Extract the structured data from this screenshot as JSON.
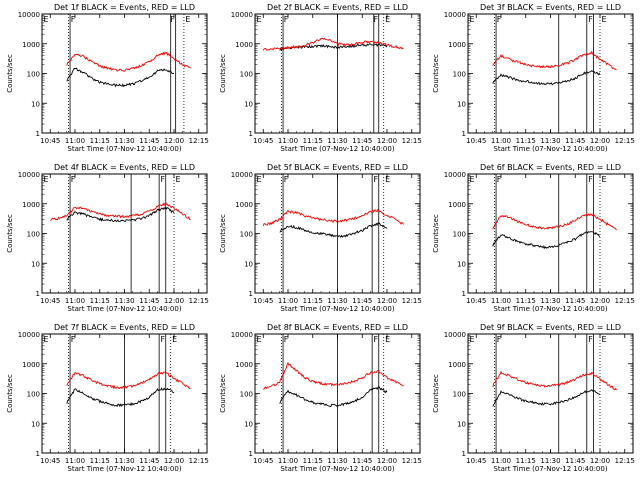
{
  "figure": {
    "start_time_label": "Start Time (07-Nov-12 10:40:00)",
    "ylabel": "Counts/sec",
    "x_ticks": [
      "10:45",
      "11:00",
      "11:15",
      "11:30",
      "11:45",
      "12:00",
      "12:15"
    ],
    "y_ticks": [
      "1",
      "10",
      "100",
      "1000",
      "10000"
    ],
    "colors": {
      "events": "#000000",
      "lld": "#ff0000"
    }
  },
  "chart_data": [
    {
      "type": "line",
      "title": "Det 1f BLACK = Events, RED = LLD",
      "xlabel": "Start Time (07-Nov-12 10:40:00)",
      "ylabel": "Counts/sec",
      "yscale": "log",
      "ylim": [
        1,
        10000
      ],
      "xlim": [
        "10:40",
        "12:20"
      ],
      "x": [
        "10:45",
        "10:50",
        "10:55",
        "11:00",
        "11:05",
        "11:10",
        "11:15",
        "11:20",
        "11:25",
        "11:30",
        "11:35",
        "11:40",
        "11:45",
        "11:50",
        "11:55",
        "12:00",
        "12:05",
        "12:10"
      ],
      "series": [
        {
          "name": "Events",
          "values": [
            null,
            null,
            60,
            150,
            110,
            70,
            50,
            45,
            40,
            40,
            45,
            55,
            75,
            120,
            140,
            100,
            null,
            null
          ]
        },
        {
          "name": "LLD",
          "values": [
            null,
            null,
            200,
            450,
            380,
            250,
            180,
            150,
            130,
            130,
            150,
            180,
            250,
            400,
            500,
            320,
            200,
            150
          ]
        }
      ],
      "vlines_solid": [
        "10:57",
        "11:58",
        "12:01"
      ],
      "vlines_dotted": [
        "12:06"
      ],
      "markers": [
        "E",
        "F",
        "F",
        "E"
      ]
    },
    {
      "type": "line",
      "title": "Det 2f BLACK = Events, RED = LLD",
      "xlabel": "Start Time (07-Nov-12 10:40:00)",
      "ylabel": "Counts/sec",
      "yscale": "log",
      "ylim": [
        1,
        10000
      ],
      "xlim": [
        "10:40",
        "12:20"
      ],
      "x": [
        "10:45",
        "10:50",
        "10:55",
        "11:00",
        "11:05",
        "11:10",
        "11:15",
        "11:20",
        "11:25",
        "11:30",
        "11:35",
        "11:40",
        "11:45",
        "11:50",
        "11:55",
        "12:00",
        "12:05",
        "12:10"
      ],
      "series": [
        {
          "name": "Events",
          "values": [
            null,
            null,
            650,
            700,
            750,
            800,
            800,
            850,
            800,
            750,
            800,
            850,
            900,
            950,
            900,
            850,
            null,
            null
          ]
        },
        {
          "name": "LLD",
          "values": [
            650,
            650,
            700,
            750,
            800,
            900,
            1100,
            1500,
            1300,
            1000,
            900,
            1000,
            1100,
            1200,
            1100,
            900,
            800,
            700
          ]
        }
      ],
      "vlines_solid": [
        "10:57",
        "11:30",
        "11:52",
        "11:55"
      ],
      "vlines_dotted": [
        "11:58"
      ],
      "markers": [
        "E",
        "F",
        "F",
        "E"
      ]
    },
    {
      "type": "line",
      "title": "Det 3f BLACK = Events, RED = LLD",
      "xlabel": "Start Time (07-Nov-12 10:40:00)",
      "ylabel": "Counts/sec",
      "yscale": "log",
      "ylim": [
        1,
        10000
      ],
      "xlim": [
        "10:40",
        "12:20"
      ],
      "x": [
        "10:45",
        "10:50",
        "10:55",
        "11:00",
        "11:05",
        "11:10",
        "11:15",
        "11:20",
        "11:25",
        "11:30",
        "11:35",
        "11:40",
        "11:45",
        "11:50",
        "11:55",
        "12:00",
        "12:05",
        "12:10"
      ],
      "series": [
        {
          "name": "Events",
          "values": [
            null,
            null,
            50,
            90,
            75,
            60,
            55,
            50,
            45,
            45,
            50,
            55,
            70,
            100,
            120,
            90,
            null,
            null
          ]
        },
        {
          "name": "LLD",
          "values": [
            null,
            null,
            200,
            400,
            300,
            250,
            200,
            180,
            170,
            170,
            190,
            220,
            300,
            420,
            500,
            300,
            200,
            130
          ]
        }
      ],
      "vlines_solid": [
        "10:57",
        "11:35",
        "11:52",
        "11:56"
      ],
      "vlines_dotted": [
        "12:00"
      ],
      "markers": [
        "E",
        "F",
        "F",
        "E"
      ]
    },
    {
      "type": "line",
      "title": "Det 4f BLACK = Events, RED = LLD",
      "xlabel": "Start Time (07-Nov-12 10:40:00)",
      "ylabel": "Counts/sec",
      "yscale": "log",
      "ylim": [
        1,
        10000
      ],
      "xlim": [
        "10:40",
        "12:20"
      ],
      "x": [
        "10:45",
        "10:50",
        "10:55",
        "11:00",
        "11:05",
        "11:10",
        "11:15",
        "11:20",
        "11:25",
        "11:30",
        "11:35",
        "11:40",
        "11:45",
        "11:50",
        "11:55",
        "12:00",
        "12:05",
        "12:10"
      ],
      "series": [
        {
          "name": "Events",
          "values": [
            null,
            null,
            300,
            500,
            450,
            350,
            300,
            280,
            270,
            270,
            280,
            320,
            400,
            600,
            750,
            500,
            null,
            null
          ]
        },
        {
          "name": "LLD",
          "values": [
            300,
            320,
            400,
            750,
            700,
            550,
            450,
            400,
            380,
            380,
            400,
            450,
            550,
            800,
            1000,
            700,
            450,
            300
          ]
        }
      ],
      "vlines_solid": [
        "10:57",
        "11:34",
        "11:51",
        "11:55"
      ],
      "vlines_dotted": [
        "12:00"
      ],
      "markers": [
        "E",
        "F",
        "F",
        "E"
      ]
    },
    {
      "type": "line",
      "title": "Det 5f BLACK = Events, RED = LLD",
      "xlabel": "Start Time (07-Nov-12 10:40:00)",
      "ylabel": "Counts/sec",
      "yscale": "log",
      "ylim": [
        1,
        10000
      ],
      "xlim": [
        "10:40",
        "12:20"
      ],
      "x": [
        "10:45",
        "10:50",
        "10:55",
        "11:00",
        "11:05",
        "11:10",
        "11:15",
        "11:20",
        "11:25",
        "11:30",
        "11:35",
        "11:40",
        "11:45",
        "11:50",
        "11:55",
        "12:00",
        "12:05",
        "12:10"
      ],
      "series": [
        {
          "name": "Events",
          "values": [
            null,
            null,
            120,
            180,
            160,
            130,
            110,
            100,
            90,
            80,
            85,
            100,
            130,
            180,
            220,
            150,
            null,
            null
          ]
        },
        {
          "name": "LLD",
          "values": [
            200,
            220,
            300,
            550,
            500,
            400,
            330,
            300,
            270,
            260,
            280,
            320,
            400,
            550,
            600,
            400,
            300,
            200
          ]
        }
      ],
      "vlines_solid": [
        "10:57",
        "11:30",
        "11:51",
        "11:55"
      ],
      "vlines_dotted": [
        "11:58"
      ],
      "markers": [
        "E",
        "F",
        "F",
        "E"
      ]
    },
    {
      "type": "line",
      "title": "Det 6f BLACK = Events, RED = LLD",
      "xlabel": "Start Time (07-Nov-12 10:40:00)",
      "ylabel": "Counts/sec",
      "yscale": "log",
      "ylim": [
        1,
        10000
      ],
      "xlim": [
        "10:40",
        "12:20"
      ],
      "x": [
        "10:45",
        "10:50",
        "10:55",
        "11:00",
        "11:05",
        "11:10",
        "11:15",
        "11:20",
        "11:25",
        "11:30",
        "11:35",
        "11:40",
        "11:45",
        "11:50",
        "11:55",
        "12:00",
        "12:05",
        "12:10"
      ],
      "series": [
        {
          "name": "Events",
          "values": [
            null,
            null,
            40,
            90,
            70,
            55,
            45,
            40,
            35,
            35,
            40,
            50,
            65,
            100,
            120,
            80,
            null,
            null
          ]
        },
        {
          "name": "LLD",
          "values": [
            null,
            null,
            150,
            400,
            350,
            250,
            200,
            170,
            150,
            150,
            170,
            200,
            280,
            400,
            450,
            300,
            200,
            130
          ]
        }
      ],
      "vlines_solid": [
        "10:57",
        "11:35",
        "11:52",
        "11:56"
      ],
      "vlines_dotted": [
        "12:00"
      ],
      "markers": [
        "E",
        "F",
        "F",
        "E"
      ]
    },
    {
      "type": "line",
      "title": "Det 7f BLACK = Events, RED = LLD",
      "xlabel": "Start Time (07-Nov-12 10:40:00)",
      "ylabel": "Counts/sec",
      "yscale": "log",
      "ylim": [
        1,
        10000
      ],
      "xlim": [
        "10:40",
        "12:20"
      ],
      "x": [
        "10:45",
        "10:50",
        "10:55",
        "11:00",
        "11:05",
        "11:10",
        "11:15",
        "11:20",
        "11:25",
        "11:30",
        "11:35",
        "11:40",
        "11:45",
        "11:50",
        "11:55",
        "12:00",
        "12:05",
        "12:10"
      ],
      "series": [
        {
          "name": "Events",
          "values": [
            null,
            null,
            50,
            140,
            100,
            70,
            55,
            45,
            40,
            40,
            45,
            55,
            75,
            130,
            150,
            110,
            null,
            null
          ]
        },
        {
          "name": "LLD",
          "values": [
            null,
            null,
            200,
            500,
            400,
            280,
            220,
            180,
            160,
            160,
            180,
            220,
            300,
            450,
            500,
            320,
            220,
            150
          ]
        }
      ],
      "vlines_solid": [
        "10:57",
        "11:30",
        "11:51",
        "11:55"
      ],
      "vlines_dotted": [
        "11:58"
      ],
      "markers": [
        "E",
        "F",
        "F",
        "E"
      ]
    },
    {
      "type": "line",
      "title": "Det 8f BLACK = Events, RED = LLD",
      "xlabel": "Start Time (07-Nov-12 10:40:00)",
      "ylabel": "Counts/sec",
      "yscale": "log",
      "ylim": [
        1,
        10000
      ],
      "xlim": [
        "10:40",
        "12:20"
      ],
      "x": [
        "10:45",
        "10:50",
        "10:55",
        "11:00",
        "11:05",
        "11:10",
        "11:15",
        "11:20",
        "11:25",
        "11:30",
        "11:35",
        "11:40",
        "11:45",
        "11:50",
        "11:55",
        "12:00",
        "12:05",
        "12:10"
      ],
      "series": [
        {
          "name": "Events",
          "values": [
            null,
            null,
            50,
            120,
            90,
            65,
            50,
            45,
            40,
            40,
            45,
            55,
            75,
            130,
            160,
            110,
            null,
            null
          ]
        },
        {
          "name": "LLD",
          "values": [
            150,
            170,
            250,
            1000,
            600,
            350,
            250,
            220,
            200,
            200,
            220,
            260,
            350,
            500,
            550,
            350,
            250,
            180
          ]
        }
      ],
      "vlines_solid": [
        "10:57",
        "11:30",
        "11:51",
        "11:55"
      ],
      "vlines_dotted": [
        "11:58"
      ],
      "markers": [
        "E",
        "F",
        "F",
        "E"
      ]
    },
    {
      "type": "line",
      "title": "Det 9f BLACK = Events, RED = LLD",
      "xlabel": "Start Time (07-Nov-12 10:40:00)",
      "ylabel": "Counts/sec",
      "yscale": "log",
      "ylim": [
        1,
        10000
      ],
      "xlim": [
        "10:40",
        "12:20"
      ],
      "x": [
        "10:45",
        "10:50",
        "10:55",
        "11:00",
        "11:05",
        "11:10",
        "11:15",
        "11:20",
        "11:25",
        "11:30",
        "11:35",
        "11:40",
        "11:45",
        "11:50",
        "11:55",
        "12:00",
        "12:05",
        "12:10"
      ],
      "series": [
        {
          "name": "Events",
          "values": [
            null,
            null,
            40,
            110,
            90,
            70,
            55,
            50,
            45,
            45,
            50,
            60,
            75,
            110,
            130,
            90,
            null,
            null
          ]
        },
        {
          "name": "LLD",
          "values": [
            null,
            null,
            180,
            500,
            400,
            300,
            230,
            200,
            180,
            180,
            200,
            230,
            300,
            420,
            480,
            300,
            200,
            130
          ]
        }
      ],
      "vlines_solid": [
        "10:57",
        "11:35",
        "11:52",
        "11:56"
      ],
      "vlines_dotted": [
        "12:00"
      ],
      "markers": [
        "E",
        "F",
        "F",
        "E"
      ]
    }
  ]
}
